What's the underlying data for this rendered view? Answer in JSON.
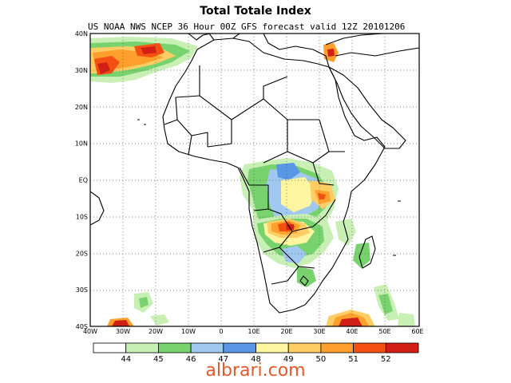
{
  "header": {
    "title": "Total Totale Index",
    "subtitle": "US NOAA NWS NCEP 36 Hour 00Z GFS forecast valid 12Z 20101206"
  },
  "map": {
    "lat_labels": [
      "40N",
      "30N",
      "20N",
      "10N",
      "EQ",
      "10S",
      "20S",
      "30S",
      "40S"
    ],
    "lon_labels": [
      "40W",
      "30W",
      "20W",
      "10W",
      "0",
      "10E",
      "20E",
      "30E",
      "40E",
      "50E",
      "60E"
    ],
    "grid": true
  },
  "colorbar": {
    "labels": [
      "44",
      "45",
      "46",
      "47",
      "48",
      "49",
      "50",
      "51",
      "52"
    ],
    "colors": [
      "#ffffff",
      "#c8f0b4",
      "#78d26e",
      "#a0c8f0",
      "#5a96e6",
      "#fff5a0",
      "#ffcd64",
      "#ffa02d",
      "#f55014",
      "#d21e14"
    ]
  },
  "footer": {
    "credit": "albrari.com"
  }
}
